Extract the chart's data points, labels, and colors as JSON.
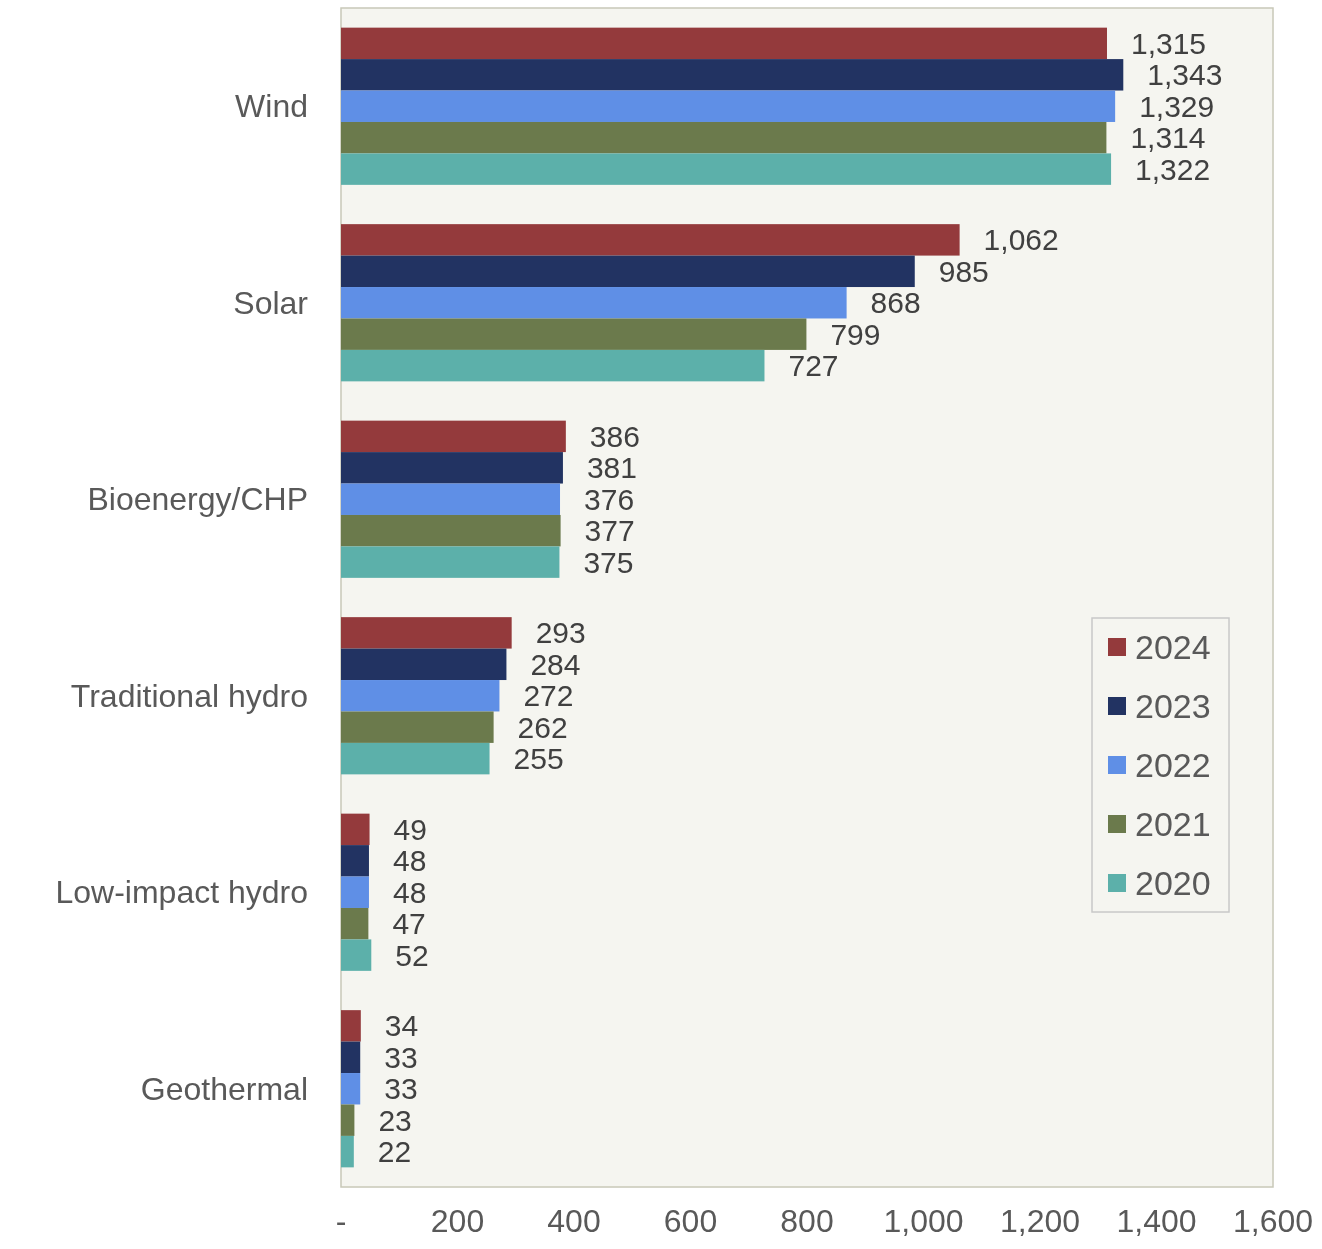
{
  "chart_data": {
    "type": "bar",
    "orientation": "horizontal",
    "categories": [
      "Wind",
      "Solar",
      "Bioenergy/CHP",
      "Traditional hydro",
      "Low-impact hydro",
      "Geothermal"
    ],
    "series": [
      {
        "name": "2024",
        "color": "#943a3c",
        "values": [
          1315,
          1062,
          386,
          293,
          49,
          34
        ],
        "value_labels": [
          "1,315",
          "1,062",
          "386",
          "293",
          "49",
          "34"
        ]
      },
      {
        "name": "2023",
        "color": "#223362",
        "values": [
          1343,
          985,
          381,
          284,
          48,
          33
        ],
        "value_labels": [
          "1,343",
          "985",
          "381",
          "284",
          "48",
          "33"
        ]
      },
      {
        "name": "2022",
        "color": "#5f8fe6",
        "values": [
          1329,
          868,
          376,
          272,
          48,
          33
        ],
        "value_labels": [
          "1,329",
          "868",
          "376",
          "272",
          "48",
          "33"
        ]
      },
      {
        "name": "2021",
        "color": "#6b7a4c",
        "values": [
          1314,
          799,
          377,
          262,
          47,
          23
        ],
        "value_labels": [
          "1,314",
          "799",
          "377",
          "262",
          "47",
          "23"
        ]
      },
      {
        "name": "2020",
        "color": "#5cb0aa",
        "values": [
          1322,
          727,
          375,
          255,
          52,
          22
        ],
        "value_labels": [
          "1,322",
          "727",
          "375",
          "255",
          "52",
          "22"
        ]
      }
    ],
    "xlim": [
      0,
      1600
    ],
    "xticks": [
      {
        "value": 0,
        "label": "-"
      },
      200,
      400,
      600,
      800,
      {
        "value": 1000,
        "label": "1,000"
      },
      {
        "value": 1200,
        "label": "1,200"
      },
      {
        "value": 1400,
        "label": "1,400"
      },
      {
        "value": 1600,
        "label": "1,600"
      }
    ],
    "legend": "right"
  }
}
